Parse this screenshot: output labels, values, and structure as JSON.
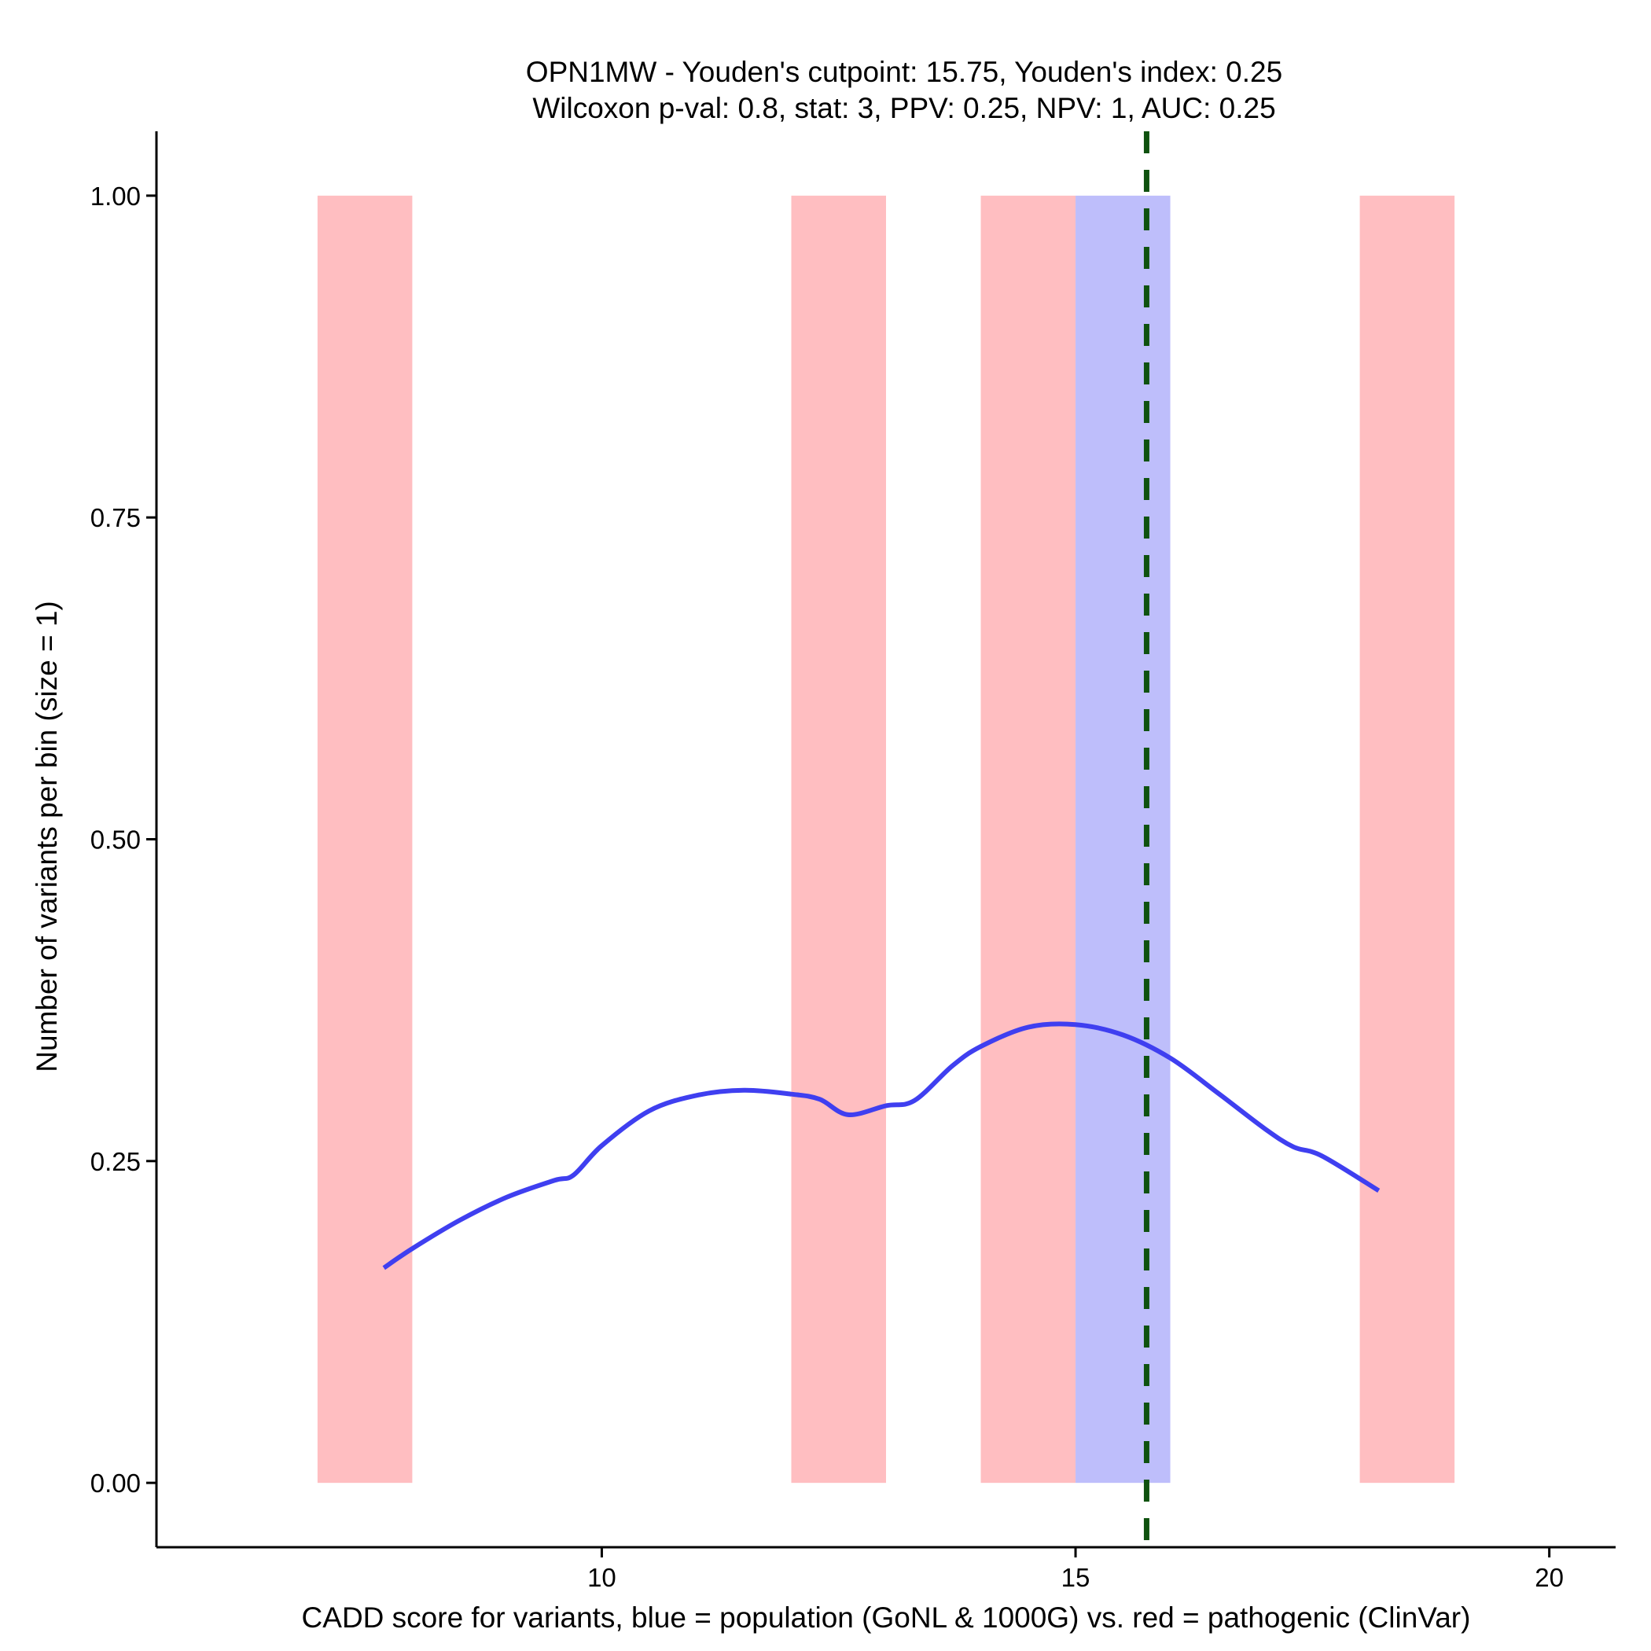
{
  "chart_data": {
    "type": "bar",
    "title": {
      "line1": "OPN1MW - Youden's cutpoint: 15.75, Youden's index: 0.25",
      "line2": "Wilcoxon p-val: 0.8, stat: 3, PPV: 0.25, NPV: 1, AUC: 0.25"
    },
    "xlabel": "CADD score for variants, blue = population (GoNL & 1000G) vs. red = pathogenic (ClinVar)",
    "ylabel": "Number of variants per bin (size = 1)",
    "xlim": [
      5.3,
      20.7
    ],
    "ylim": [
      -0.05,
      1.05
    ],
    "x_ticks": [
      {
        "value": 10,
        "label": "10"
      },
      {
        "value": 15,
        "label": "15"
      },
      {
        "value": 20,
        "label": "20"
      }
    ],
    "y_ticks": [
      {
        "value": 0,
        "label": "0.00"
      },
      {
        "value": 0.25,
        "label": "0.25"
      },
      {
        "value": 0.5,
        "label": "0.50"
      },
      {
        "value": 0.75,
        "label": "0.75"
      },
      {
        "value": 1,
        "label": "1.00"
      }
    ],
    "series": [
      {
        "name": "pathogenic (ClinVar)",
        "color": "#ffbec1",
        "bins": [
          {
            "x0": 7,
            "x1": 8,
            "count": 1
          },
          {
            "x0": 12,
            "x1": 13,
            "count": 1
          },
          {
            "x0": 14,
            "x1": 15,
            "count": 1
          },
          {
            "x0": 18,
            "x1": 19,
            "count": 1
          }
        ]
      },
      {
        "name": "population (GoNL & 1000G)",
        "color": "#bebefb",
        "bins": [
          {
            "x0": 15,
            "x1": 16,
            "count": 1
          }
        ]
      }
    ],
    "density_curve": {
      "name": "population density smooth",
      "color": "#3f3ff0",
      "x": [
        7.7,
        8.0,
        8.5,
        9.0,
        9.5,
        9.7,
        10.0,
        10.5,
        11.0,
        11.5,
        12.0,
        12.3,
        12.6,
        13.0,
        13.3,
        13.7,
        14.0,
        14.5,
        15.0,
        15.5,
        16.0,
        16.5,
        17.0,
        17.3,
        17.6,
        18.2
      ],
      "y": [
        0.167,
        0.182,
        0.204,
        0.222,
        0.235,
        0.239,
        0.262,
        0.289,
        0.301,
        0.305,
        0.302,
        0.298,
        0.286,
        0.293,
        0.297,
        0.324,
        0.339,
        0.354,
        0.356,
        0.348,
        0.33,
        0.303,
        0.275,
        0.261,
        0.254,
        0.227
      ]
    },
    "cutpoint": {
      "x": 15.75,
      "label": "Youden's cutpoint",
      "color": "#0f520f"
    }
  }
}
